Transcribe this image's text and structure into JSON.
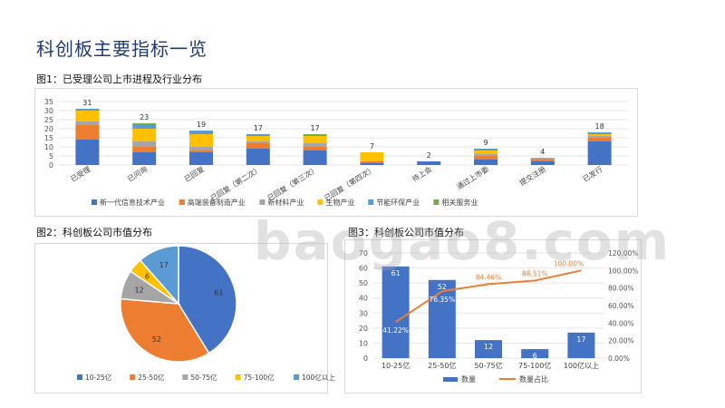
{
  "page": {
    "title": "科创板主要指标一览",
    "watermark": "baogao8.com"
  },
  "colors": {
    "blue": "#4472c4",
    "orange": "#ed7d31",
    "gray": "#a5a5a5",
    "yellow": "#ffc000",
    "lightblue": "#5b9bd5",
    "green": "#70ad47"
  },
  "chart_data": [
    {
      "id": "fig1",
      "type": "bar",
      "stacked": true,
      "title": "图1：已受理公司上市进程及行业分布",
      "categories": [
        "已受理",
        "已问询",
        "已回复",
        "已回复（第二次）",
        "已回复（第三次）",
        "已回复（第四次）",
        "待上会",
        "通过上市委",
        "提交注册",
        "已发行"
      ],
      "totals": [
        31,
        23,
        19,
        17,
        17,
        7,
        2,
        9,
        4,
        18
      ],
      "series": [
        {
          "name": "新一代信息技术产业",
          "color": "#4472c4",
          "values": [
            14,
            7,
            7,
            9,
            8,
            1,
            2,
            3,
            2,
            13
          ]
        },
        {
          "name": "高端装备制造产业",
          "color": "#ed7d31",
          "values": [
            8,
            3,
            1,
            3,
            2,
            1,
            0,
            2,
            1,
            2
          ]
        },
        {
          "name": "新材料产业",
          "color": "#a5a5a5",
          "values": [
            2,
            3,
            2,
            1,
            2,
            0,
            0,
            1,
            1,
            1
          ]
        },
        {
          "name": "生物产业",
          "color": "#ffc000",
          "values": [
            6,
            7,
            7,
            3,
            4,
            5,
            0,
            2,
            0,
            1
          ]
        },
        {
          "name": "节能环保产业",
          "color": "#5b9bd5",
          "values": [
            1,
            2,
            2,
            1,
            0,
            0,
            0,
            1,
            0,
            1
          ]
        },
        {
          "name": "相关服务业",
          "color": "#70ad47",
          "values": [
            0,
            1,
            0,
            0,
            1,
            0,
            0,
            0,
            0,
            0
          ]
        }
      ],
      "ylim": [
        0,
        35
      ],
      "yticks": [
        0,
        5,
        10,
        15,
        20,
        25,
        30,
        35
      ],
      "legend_position": "bottom"
    },
    {
      "id": "fig2",
      "type": "pie",
      "title": "图2：科创板公司市值分布",
      "slices": [
        {
          "label": "10-25亿",
          "value": 61,
          "color": "#4472c4"
        },
        {
          "label": "25-50亿",
          "value": 52,
          "color": "#ed7d31"
        },
        {
          "label": "50-75亿",
          "value": 12,
          "color": "#a5a5a5"
        },
        {
          "label": "75-100亿",
          "value": 6,
          "color": "#ffc000"
        },
        {
          "label": "100亿以上",
          "value": 17,
          "color": "#5b9bd5"
        }
      ],
      "legend_position": "bottom"
    },
    {
      "id": "fig3",
      "type": "bar",
      "title": "图3：科创板公司市值分布",
      "categories": [
        "10-25亿",
        "25-50亿",
        "50-75亿",
        "75-100亿",
        "100亿以上"
      ],
      "series": [
        {
          "name": "数量",
          "type": "bar",
          "axis": "left",
          "color": "#4472c4",
          "values": [
            61,
            52,
            12,
            6,
            17
          ]
        },
        {
          "name": "数量占比",
          "type": "line",
          "axis": "right",
          "color": "#ed7d31",
          "values": [
            41.22,
            76.35,
            84.46,
            88.51,
            100.0
          ],
          "labels": [
            "41.22%",
            "76.35%",
            "84.46%",
            "88.51%",
            "100.00%"
          ]
        }
      ],
      "ylim": [
        0,
        70
      ],
      "yticks": [
        0,
        10,
        20,
        30,
        40,
        50,
        60,
        70
      ],
      "y2lim": [
        0,
        120
      ],
      "y2ticks": [
        "0.00%",
        "20.00%",
        "40.00%",
        "60.00%",
        "80.00%",
        "100.00%",
        "120.00%"
      ],
      "legend_position": "bottom"
    }
  ]
}
